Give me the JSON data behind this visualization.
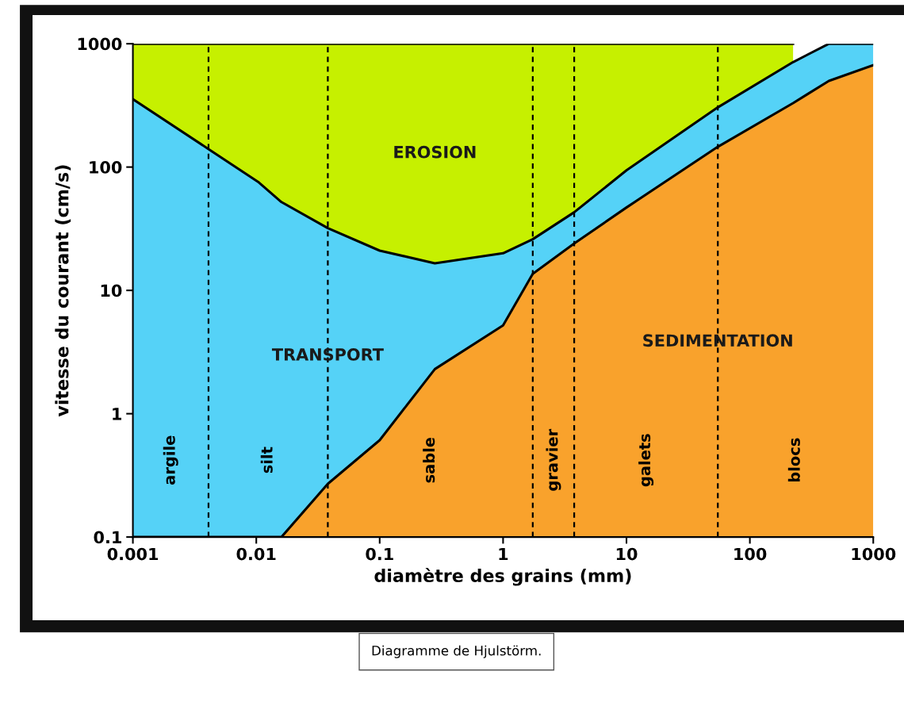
{
  "chart_data": {
    "type": "area",
    "stacked": true,
    "xlabel": "diamètre des grains (mm)",
    "ylabel": "vitesse du courant (cm/s)",
    "log": "xy",
    "xlim": [
      0.001,
      1000
    ],
    "ylim": [
      0.1,
      1000
    ],
    "xticks": [
      0.001,
      0.01,
      0.1,
      1,
      10,
      100,
      1000
    ],
    "yticks": [
      0.1,
      1,
      10,
      100,
      1000
    ],
    "grid": false,
    "legend": false,
    "x": [
      0.001,
      0.0041,
      0.0105,
      0.016,
      0.038,
      0.1,
      0.28,
      1,
      1.74,
      3.77,
      10,
      55,
      224,
      437,
      1000
    ],
    "series": [
      {
        "name": "SEDIMENTATION",
        "color": "#f9a22c",
        "values": [
          0.1,
          0.1,
          0.1,
          0.1,
          0.27,
          0.61,
          2.3,
          5.2,
          13.6,
          24,
          47,
          146,
          330,
          500,
          670
        ]
      },
      {
        "name": "TRANSPORT",
        "color": "#55d2f7",
        "values": [
          354.9,
          139.9,
          74.9,
          51.9,
          31.73,
          20.39,
          14.3,
          14.8,
          12.4,
          19,
          47,
          159,
          380,
          500,
          330
        ]
      },
      {
        "name": "EROSION",
        "color": "#c6f000",
        "values": [
          645,
          860,
          925,
          948,
          968,
          979,
          983.4,
          980,
          974,
          957,
          906,
          695,
          290,
          null,
          null
        ]
      }
    ],
    "ref_lines": [
      {
        "axis": "x",
        "value": 0.0041,
        "color": "#000000",
        "line_style": "dashed"
      },
      {
        "axis": "x",
        "value": 0.038,
        "color": "#000000",
        "line_style": "dashed"
      },
      {
        "axis": "x",
        "value": 1.74,
        "color": "#000000",
        "line_style": "dashed"
      },
      {
        "axis": "x",
        "value": 3.77,
        "color": "#000000",
        "line_style": "dashed"
      },
      {
        "axis": "x",
        "value": 55,
        "color": "#000000",
        "line_style": "dashed"
      }
    ],
    "annotations": [
      "argile",
      "silt",
      "sable",
      "gravier",
      "galets",
      "blocs",
      "Diagramme de Hjulstörm."
    ]
  }
}
